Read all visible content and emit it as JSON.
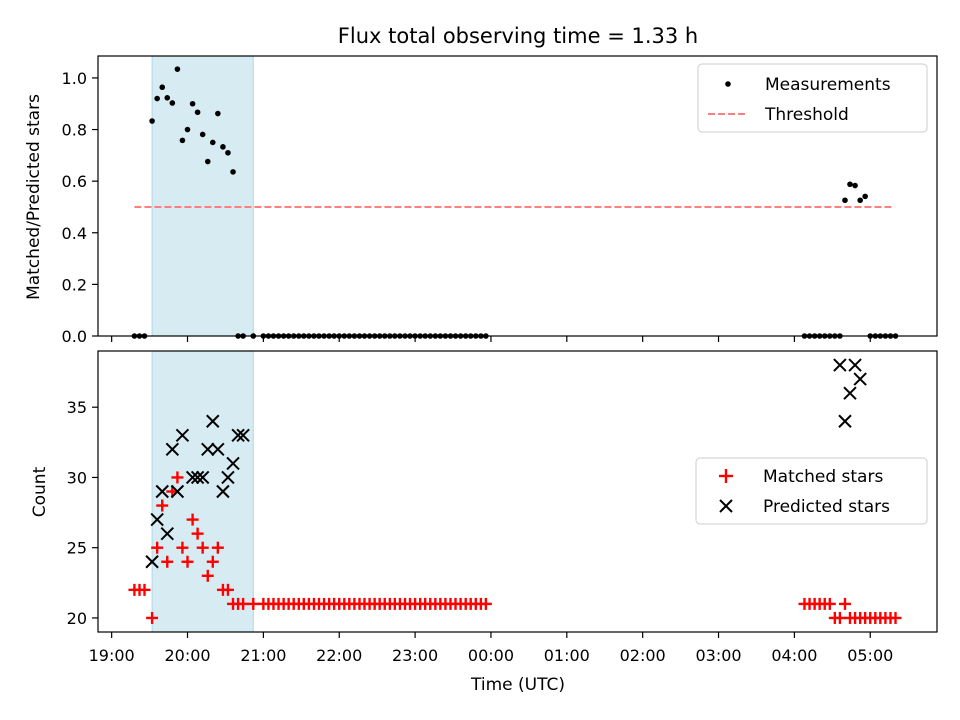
{
  "chart_data": {
    "type": "scatter",
    "title": "Flux total observing time = 1.33 h",
    "xlabel": "Time (UTC)",
    "x_tick_labels": [
      "19:00",
      "20:00",
      "21:00",
      "22:00",
      "23:00",
      "00:00",
      "01:00",
      "02:00",
      "03:00",
      "04:00",
      "05:00"
    ],
    "x_ticks_hours": [
      19,
      20,
      21,
      22,
      23,
      24,
      25,
      26,
      27,
      28,
      29
    ],
    "x_range_hours": [
      18.82,
      29.88
    ],
    "highlight_span_hours": [
      19.5333,
      20.8667
    ],
    "colors": {
      "highlight": "#add8e6",
      "threshold": "#ff7f7f",
      "matched": "#ff0000",
      "predicted": "#000000",
      "measurements": "#000000"
    },
    "panels": [
      {
        "id": "top",
        "ylabel": "Matched/Predicted stars",
        "ylim": [
          0,
          1.085
        ],
        "y_ticks": [
          0.0,
          0.2,
          0.4,
          0.6,
          0.8,
          1.0
        ],
        "y_tick_labels": [
          "0.0",
          "0.2",
          "0.4",
          "0.6",
          "0.8",
          "1.0"
        ],
        "legend_position": "top-right",
        "threshold": {
          "name": "Threshold",
          "value": 0.5,
          "x_range_hours": [
            19.3,
            29.3
          ]
        },
        "measurements": {
          "name": "Measurements",
          "x": [
            19.3,
            19.367,
            19.433,
            19.533,
            19.6,
            19.667,
            19.733,
            19.8,
            19.867,
            19.933,
            20.0,
            20.067,
            20.133,
            20.2,
            20.267,
            20.333,
            20.4,
            20.467,
            20.533,
            20.6,
            20.667,
            20.733,
            20.867,
            21.0,
            21.067,
            21.133,
            21.2,
            21.267,
            21.333,
            21.4,
            21.467,
            21.533,
            21.6,
            21.667,
            21.733,
            21.8,
            21.867,
            21.933,
            22.0,
            22.067,
            22.133,
            22.2,
            22.267,
            22.333,
            22.4,
            22.467,
            22.533,
            22.6,
            22.667,
            22.733,
            22.8,
            22.867,
            22.933,
            23.0,
            23.067,
            23.133,
            23.2,
            23.267,
            23.333,
            23.4,
            23.467,
            23.533,
            23.6,
            23.667,
            23.733,
            23.8,
            23.867,
            23.933,
            28.133,
            28.2,
            28.267,
            28.333,
            28.4,
            28.467,
            28.533,
            28.6,
            28.667,
            28.733,
            28.8,
            28.867,
            28.933,
            29.0,
            29.067,
            29.133,
            29.2,
            29.267,
            29.333
          ],
          "y": [
            0.0,
            0.0,
            0.0,
            0.833,
            0.92,
            0.964,
            0.923,
            0.903,
            1.034,
            0.758,
            0.8,
            0.9,
            0.867,
            0.781,
            0.676,
            0.75,
            0.862,
            0.733,
            0.71,
            0.636,
            0.0,
            0.0,
            0.0,
            0.0,
            0.0,
            0.0,
            0.0,
            0.0,
            0.0,
            0.0,
            0.0,
            0.0,
            0.0,
            0.0,
            0.0,
            0.0,
            0.0,
            0.0,
            0.0,
            0.0,
            0.0,
            0.0,
            0.0,
            0.0,
            0.0,
            0.0,
            0.0,
            0.0,
            0.0,
            0.0,
            0.0,
            0.0,
            0.0,
            0.0,
            0.0,
            0.0,
            0.0,
            0.0,
            0.0,
            0.0,
            0.0,
            0.0,
            0.0,
            0.0,
            0.0,
            0.0,
            0.0,
            0.0,
            0.0,
            0.0,
            0.0,
            0.0,
            0.0,
            0.0,
            0.0,
            0.0,
            0.526,
            0.588,
            0.583,
            0.526,
            0.541,
            0.0,
            0.0,
            0.0,
            0.0,
            0.0,
            0.0
          ]
        }
      },
      {
        "id": "bottom",
        "ylabel": "Count",
        "ylim": [
          19.0,
          39.0
        ],
        "y_ticks": [
          20,
          25,
          30,
          35
        ],
        "y_tick_labels": [
          "20",
          "25",
          "30",
          "35"
        ],
        "legend_position": "center-right",
        "series": [
          {
            "name": "Matched stars",
            "marker": "plus",
            "x": [
              19.3,
              19.367,
              19.433,
              19.533,
              19.6,
              19.667,
              19.733,
              19.8,
              19.867,
              19.933,
              20.0,
              20.067,
              20.133,
              20.2,
              20.267,
              20.333,
              20.4,
              20.467,
              20.533,
              20.6,
              20.667,
              20.733,
              20.867,
              21.0,
              21.067,
              21.133,
              21.2,
              21.267,
              21.333,
              21.4,
              21.467,
              21.533,
              21.6,
              21.667,
              21.733,
              21.8,
              21.867,
              21.933,
              22.0,
              22.067,
              22.133,
              22.2,
              22.267,
              22.333,
              22.4,
              22.467,
              22.533,
              22.6,
              22.667,
              22.733,
              22.8,
              22.867,
              22.933,
              23.0,
              23.067,
              23.133,
              23.2,
              23.267,
              23.333,
              23.4,
              23.467,
              23.533,
              23.6,
              23.667,
              23.733,
              23.8,
              23.867,
              23.933,
              28.133,
              28.2,
              28.267,
              28.333,
              28.4,
              28.467,
              28.533,
              28.6,
              28.667,
              28.733,
              28.8,
              28.867,
              28.933,
              29.0,
              29.067,
              29.133,
              29.2,
              29.267,
              29.333
            ],
            "y": [
              22,
              22,
              22,
              20,
              25,
              28,
              24,
              29,
              30,
              25,
              24,
              27,
              26,
              25,
              23,
              24,
              25,
              22,
              22,
              21,
              21,
              21,
              21,
              21,
              21,
              21,
              21,
              21,
              21,
              21,
              21,
              21,
              21,
              21,
              21,
              21,
              21,
              21,
              21,
              21,
              21,
              21,
              21,
              21,
              21,
              21,
              21,
              21,
              21,
              21,
              21,
              21,
              21,
              21,
              21,
              21,
              21,
              21,
              21,
              21,
              21,
              21,
              21,
              21,
              21,
              21,
              21,
              21,
              21,
              21,
              21,
              21,
              21,
              21,
              20,
              20,
              21,
              20,
              20,
              20,
              20,
              20,
              20,
              20,
              20,
              20,
              20
            ]
          },
          {
            "name": "Predicted stars",
            "marker": "x",
            "x": [
              19.533,
              19.6,
              19.667,
              19.733,
              19.8,
              19.867,
              19.933,
              20.067,
              20.133,
              20.2,
              20.267,
              20.333,
              20.4,
              20.467,
              20.533,
              20.6,
              20.667,
              20.733,
              28.6,
              28.667,
              28.733,
              28.8,
              28.867
            ],
            "y": [
              24,
              27,
              29,
              26,
              32,
              29,
              33,
              30,
              30,
              30,
              32,
              34,
              32,
              29,
              30,
              31,
              33,
              33,
              38,
              34,
              36,
              38,
              37
            ]
          }
        ]
      }
    ]
  }
}
